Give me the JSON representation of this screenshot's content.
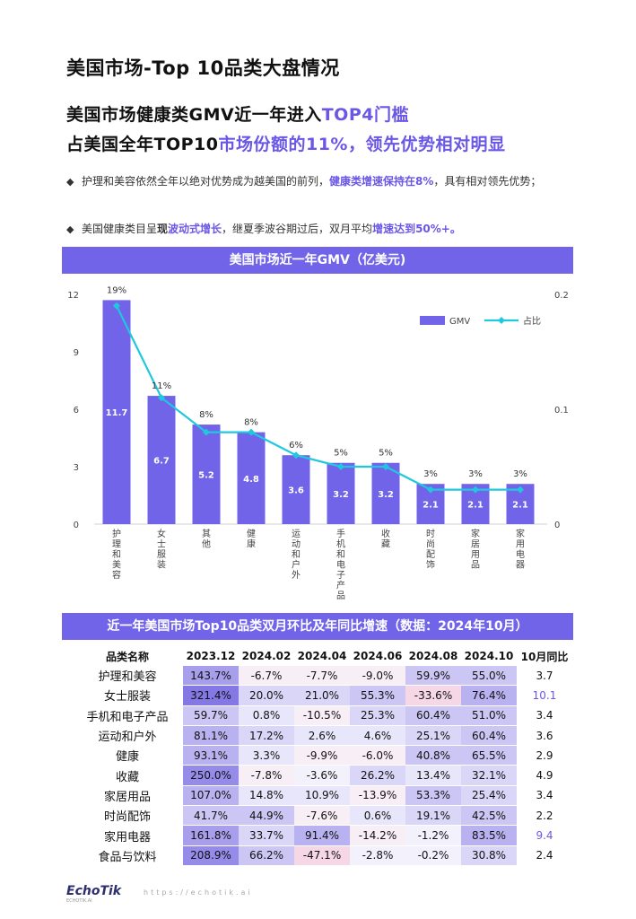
{
  "page": {
    "title": "美国市场-Top 10品类大盘情况",
    "headline1": {
      "a": "美国市场健康类GMV近一年进入",
      "b": "TOP4门槛"
    },
    "headline2": {
      "a": "占美国全年TOP10",
      "b": "市场份额的11%，领先优势相对明显"
    },
    "bullet1": {
      "a": "护理和美容依然全年以绝对优势成为越美国的前列，",
      "b": "健康类增速保持在8%",
      "c": "，具有相对领先优势；"
    },
    "bullet2": {
      "a": "美国健康类目呈",
      "b": "现",
      "c": "波动式增长",
      "d": "，继夏季波谷期过后，双月平均",
      "e": "增速达到50%+。"
    },
    "chart_banner": "美国市场近一年GMV（亿美元)",
    "table_banner": "近一年美国市场Top10品类双月环比及年同比增速（数据：2024年10月）",
    "footer_logo": "EchoTik",
    "footer_logo_sub": "ECHOTIK.AI",
    "footer_url": "https://echotik.ai"
  },
  "colors": {
    "accent": "#6b57e6",
    "bar": "#7164e9",
    "line": "#1fc8de"
  },
  "chart_data": {
    "type": "bar",
    "title": "美国市场近一年GMV（亿美元)",
    "categories": [
      "护理和美容",
      "女士服装",
      "其他",
      "健康",
      "运动和户外",
      "手机和电子产品",
      "收藏",
      "时尚配饰",
      "家居用品",
      "家用电器"
    ],
    "series": [
      {
        "name": "GMV",
        "type": "bar",
        "axis": "left",
        "values": [
          11.7,
          6.7,
          5.2,
          4.8,
          3.6,
          3.2,
          3.2,
          2.1,
          2.1,
          2.1
        ]
      },
      {
        "name": "占比",
        "type": "line",
        "axis": "right",
        "values": [
          0.19,
          0.11,
          0.08,
          0.08,
          0.06,
          0.05,
          0.05,
          0.03,
          0.03,
          0.03
        ]
      }
    ],
    "bar_labels": [
      "11.7",
      "6.7",
      "5.2",
      "4.8",
      "3.6",
      "3.2",
      "3.2",
      "2.1",
      "2.1",
      "2.1"
    ],
    "line_labels": [
      "19%",
      "11%",
      "8%",
      "8%",
      "6%",
      "5%",
      "5%",
      "3%",
      "3%",
      "3%"
    ],
    "ylim_left": [
      0,
      12
    ],
    "yticks_left": [
      "0",
      "3",
      "6",
      "9",
      "12"
    ],
    "ylim_right": [
      0,
      0.2
    ],
    "yticks_right": [
      "0",
      "0.1",
      "0.2"
    ],
    "legend": {
      "position": "top-right",
      "items": [
        "GMV",
        "占比"
      ]
    }
  },
  "table": {
    "headers": [
      "品类名称",
      "2023.12",
      "2024.02",
      "2024.04",
      "2024.06",
      "2024.08",
      "2024.10",
      "10月同比"
    ],
    "rows": [
      {
        "name": "护理和美容",
        "values": [
          "143.7%",
          "-6.7%",
          "-7.7%",
          "-9.0%",
          "59.9%",
          "55.0%"
        ],
        "nums": [
          143.7,
          -6.7,
          -7.7,
          -9.0,
          59.9,
          55.0
        ],
        "yoy": "3.7",
        "hi": false
      },
      {
        "name": "女士服装",
        "values": [
          "321.4%",
          "20.0%",
          "21.0%",
          "55.3%",
          "-33.6%",
          "76.4%"
        ],
        "nums": [
          321.4,
          20.0,
          21.0,
          55.3,
          -33.6,
          76.4
        ],
        "yoy": "10.1",
        "hi": true
      },
      {
        "name": "手机和电子产品",
        "values": [
          "59.7%",
          "0.8%",
          "-10.5%",
          "25.3%",
          "60.4%",
          "51.0%"
        ],
        "nums": [
          59.7,
          0.8,
          -10.5,
          25.3,
          60.4,
          51.0
        ],
        "yoy": "3.4",
        "hi": false
      },
      {
        "name": "运动和户外",
        "values": [
          "81.1%",
          "17.2%",
          "2.6%",
          "4.6%",
          "25.1%",
          "60.4%"
        ],
        "nums": [
          81.1,
          17.2,
          2.6,
          4.6,
          25.1,
          60.4
        ],
        "yoy": "3.6",
        "hi": false
      },
      {
        "name": "健康",
        "values": [
          "93.1%",
          "3.3%",
          "-9.9%",
          "-6.0%",
          "40.8%",
          "65.5%"
        ],
        "nums": [
          93.1,
          3.3,
          -9.9,
          -6.0,
          40.8,
          65.5
        ],
        "yoy": "2.9",
        "hi": false
      },
      {
        "name": "收藏",
        "values": [
          "250.0%",
          "-7.8%",
          "-3.6%",
          "26.2%",
          "13.4%",
          "32.1%"
        ],
        "nums": [
          250.0,
          -7.8,
          -3.6,
          26.2,
          13.4,
          32.1
        ],
        "yoy": "4.9",
        "hi": false
      },
      {
        "name": "家居用品",
        "values": [
          "107.0%",
          "14.8%",
          "10.9%",
          "-13.9%",
          "53.3%",
          "25.4%"
        ],
        "nums": [
          107.0,
          14.8,
          10.9,
          -13.9,
          53.3,
          25.4
        ],
        "yoy": "3.4",
        "hi": false
      },
      {
        "name": "时尚配饰",
        "values": [
          "41.7%",
          "44.9%",
          "-7.6%",
          "0.6%",
          "19.1%",
          "42.5%"
        ],
        "nums": [
          41.7,
          44.9,
          -7.6,
          0.6,
          19.1,
          42.5
        ],
        "yoy": "2.2",
        "hi": false
      },
      {
        "name": "家用电器",
        "values": [
          "161.8%",
          "33.7%",
          "91.4%",
          "-14.2%",
          "-1.2%",
          "83.5%"
        ],
        "nums": [
          161.8,
          33.7,
          91.4,
          -14.2,
          -1.2,
          83.5
        ],
        "yoy": "9.4",
        "hi": true
      },
      {
        "name": "食品与饮料",
        "values": [
          "208.9%",
          "66.2%",
          "-47.1%",
          "-2.8%",
          "-0.2%",
          "30.8%"
        ],
        "nums": [
          208.9,
          66.2,
          -47.1,
          -2.8,
          -0.2,
          30.8
        ],
        "yoy": "2.4",
        "hi": false
      }
    ]
  }
}
